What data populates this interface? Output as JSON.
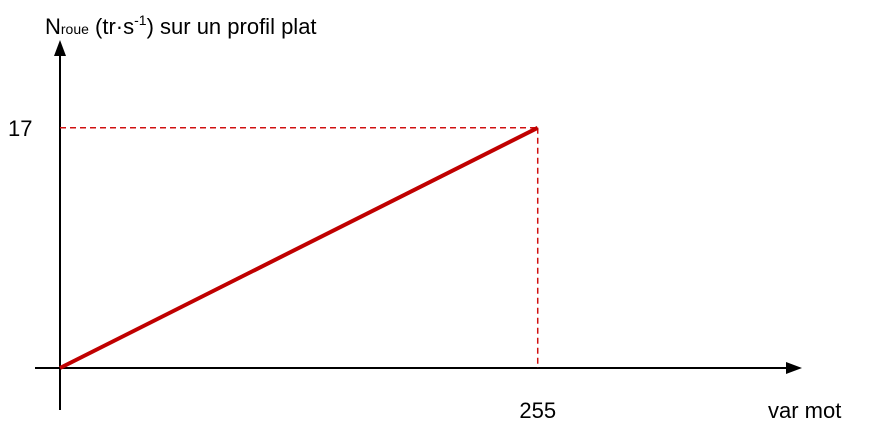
{
  "chart_data": {
    "type": "line",
    "ylabel": [
      "N",
      "roue",
      " (tr·s",
      "-1",
      ") sur un profil plat"
    ],
    "xlabel": "var mot",
    "x": [
      0,
      255
    ],
    "series": [
      {
        "color": "#c00000",
        "values": [
          0,
          17
        ]
      }
    ],
    "xlim": [
      0,
      395
    ],
    "ylim": [
      0,
      23
    ],
    "xticks": [
      255
    ],
    "yticks": [
      17
    ],
    "guide_color": "#d01010"
  }
}
